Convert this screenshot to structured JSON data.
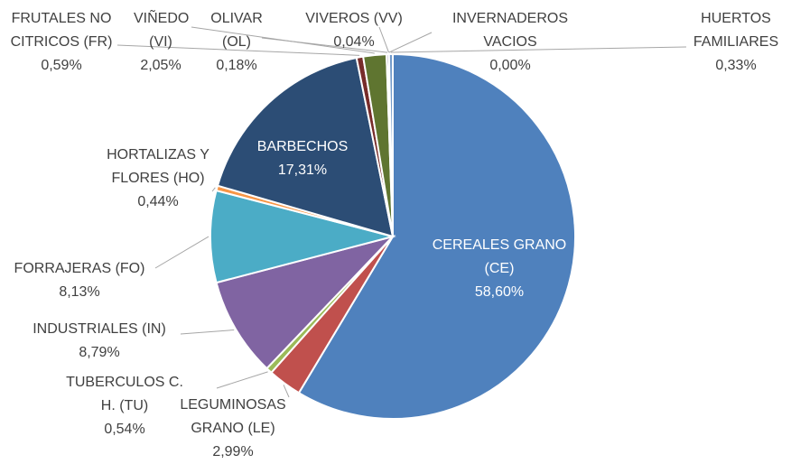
{
  "chart_data": {
    "type": "pie",
    "categories": [
      "CEREALES GRANO (CE)",
      "LEGUMINOSAS GRANO (LE)",
      "TUBERCULOS C. H. (TU)",
      "INDUSTRIALES (IN)",
      "FORRAJERAS (FO)",
      "HORTALIZAS Y FLORES (HO)",
      "BARBECHOS",
      "FRUTALES NO CITRICOS (FR)",
      "VIÑEDO (VI)",
      "OLIVAR (OL)",
      "VIVEROS (VV)",
      "INVERNADEROS VACIOS",
      "HUERTOS FAMILIARES"
    ],
    "values": [
      58.6,
      2.99,
      0.54,
      8.79,
      8.13,
      0.44,
      17.31,
      0.59,
      2.05,
      0.18,
      0.04,
      0.0,
      0.33
    ],
    "value_labels": [
      "58,60%",
      "2,99%",
      "0,54%",
      "8,79%",
      "8,13%",
      "0,44%",
      "17,31%",
      "0,59%",
      "2,05%",
      "0,18%",
      "0,04%",
      "0,00%",
      "0,33%"
    ],
    "colors": [
      "#4f81bd",
      "#c0504d",
      "#9bbb59",
      "#8064a2",
      "#4bacc6",
      "#f79646",
      "#2c4d75",
      "#772c2a",
      "#5f7530",
      "#4d3b62",
      "#276a7c",
      "#b65708",
      "#729aca"
    ]
  }
}
